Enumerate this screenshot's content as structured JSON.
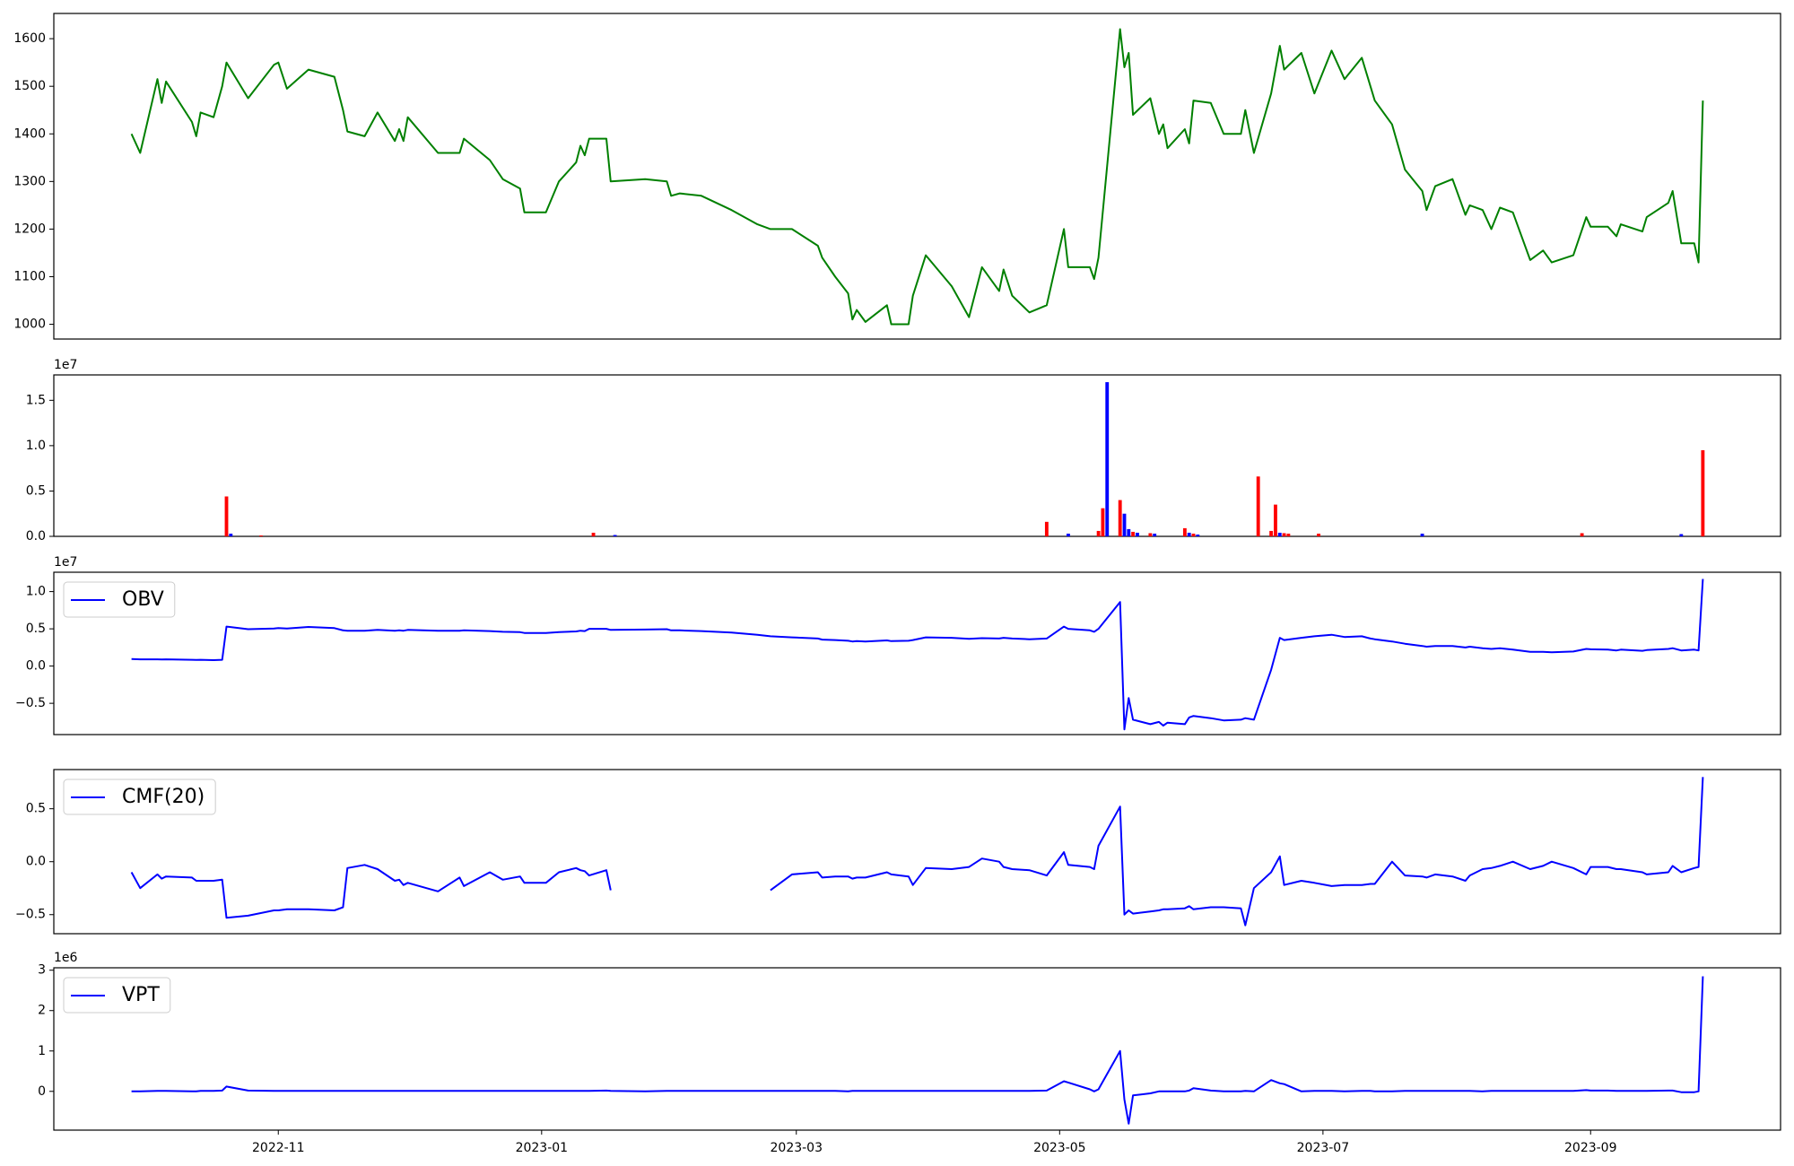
{
  "chart_data": [
    {
      "type": "line",
      "x": [
        "2022-09-28",
        "2022-09-30",
        "2022-10-04",
        "2022-10-05",
        "2022-10-06",
        "2022-10-12",
        "2022-10-13",
        "2022-10-14",
        "2022-10-17",
        "2022-10-19",
        "2022-10-20",
        "2022-10-25",
        "2022-10-31",
        "2022-11-01",
        "2022-11-03",
        "2022-11-08",
        "2022-11-14",
        "2022-11-16",
        "2022-11-17",
        "2022-11-21",
        "2022-11-24",
        "2022-11-28",
        "2022-11-29",
        "2022-11-30",
        "2022-12-01",
        "2022-12-08",
        "2022-12-13",
        "2022-12-14",
        "2022-12-20",
        "2022-12-23",
        "2022-12-27",
        "2022-12-28",
        "2023-01-02",
        "2023-01-05",
        "2023-01-09",
        "2023-01-10",
        "2023-01-11",
        "2023-01-12",
        "2023-01-16",
        "2023-01-17",
        "2023-01-25",
        "2023-01-30",
        "2023-01-31",
        "2023-02-02",
        "2023-02-07",
        "2023-02-14",
        "2023-02-20",
        "2023-02-23",
        "2023-02-28",
        "2023-03-06",
        "2023-03-07",
        "2023-03-10",
        "2023-03-13",
        "2023-03-14",
        "2023-03-15",
        "2023-03-17",
        "2023-03-22",
        "2023-03-23",
        "2023-03-27",
        "2023-03-28",
        "2023-03-31",
        "2023-04-06",
        "2023-04-10",
        "2023-04-13",
        "2023-04-17",
        "2023-04-18",
        "2023-04-20",
        "2023-04-24",
        "2023-04-28",
        "2023-05-02",
        "2023-05-03",
        "2023-05-08",
        "2023-05-09",
        "2023-05-10",
        "2023-05-15",
        "2023-05-16",
        "2023-05-17",
        "2023-05-18",
        "2023-05-22",
        "2023-05-24",
        "2023-05-25",
        "2023-05-26",
        "2023-05-30",
        "2023-05-31",
        "2023-06-01",
        "2023-06-05",
        "2023-06-08",
        "2023-06-12",
        "2023-06-13",
        "2023-06-15",
        "2023-06-19",
        "2023-06-21",
        "2023-06-22",
        "2023-06-26",
        "2023-06-29",
        "2023-07-03",
        "2023-07-06",
        "2023-07-10",
        "2023-07-12",
        "2023-07-13",
        "2023-07-17",
        "2023-07-20",
        "2023-07-24",
        "2023-07-25",
        "2023-07-27",
        "2023-07-31",
        "2023-08-03",
        "2023-08-04",
        "2023-08-07",
        "2023-08-09",
        "2023-08-11",
        "2023-08-14",
        "2023-08-18",
        "2023-08-21",
        "2023-08-23",
        "2023-08-28",
        "2023-08-31",
        "2023-09-01",
        "2023-09-05",
        "2023-09-07",
        "2023-09-08",
        "2023-09-13",
        "2023-09-14",
        "2023-09-19",
        "2023-09-20",
        "2023-09-22",
        "2023-09-25",
        "2023-09-26",
        "2023-09-27"
      ],
      "series": [
        {
          "color": "green",
          "values": [
            1400,
            1360,
            1515,
            1465,
            1510,
            1425,
            1395,
            1445,
            1435,
            1500,
            1550,
            1475,
            1545,
            1550,
            1495,
            1535,
            1520,
            1450,
            1405,
            1395,
            1445,
            1385,
            1410,
            1385,
            1435,
            1360,
            1360,
            1390,
            1345,
            1305,
            1285,
            1235,
            1235,
            1300,
            1340,
            1375,
            1355,
            1390,
            1390,
            1300,
            1305,
            1300,
            1270,
            1275,
            1270,
            1240,
            1210,
            1200,
            1200,
            1165,
            1140,
            1100,
            1065,
            1010,
            1030,
            1005,
            1040,
            1000,
            1000,
            1060,
            1145,
            1080,
            1015,
            1120,
            1070,
            1115,
            1060,
            1025,
            1040,
            1200,
            1120,
            1120,
            1095,
            1140,
            1620,
            1540,
            1570,
            1440,
            1475,
            1400,
            1420,
            1370,
            1410,
            1380,
            1470,
            1465,
            1400,
            1400,
            1450,
            1360,
            1485,
            1585,
            1535,
            1570,
            1485,
            1575,
            1515,
            1560,
            1500,
            1470,
            1420,
            1325,
            1280,
            1240,
            1290,
            1305,
            1230,
            1250,
            1240,
            1200,
            1245,
            1235,
            1135,
            1155,
            1130,
            1145,
            1225,
            1205,
            1205,
            1185,
            1210,
            1195,
            1225,
            1255,
            1280,
            1170,
            1170,
            1130,
            1470
          ]
        }
      ],
      "ylim": [
        969,
        1653
      ],
      "yticks": [
        1000,
        1100,
        1200,
        1300,
        1400,
        1500,
        1600
      ]
    },
    {
      "type": "bar",
      "x": [
        "2022-10-20",
        "2022-10-21",
        "2022-10-28",
        "2023-01-13",
        "2023-01-18",
        "2023-04-28",
        "2023-05-03",
        "2023-05-10",
        "2023-05-11",
        "2023-05-12",
        "2023-05-15",
        "2023-05-16",
        "2023-05-17",
        "2023-05-18",
        "2023-05-19",
        "2023-05-22",
        "2023-05-23",
        "2023-05-30",
        "2023-05-31",
        "2023-06-01",
        "2023-06-02",
        "2023-06-16",
        "2023-06-19",
        "2023-06-20",
        "2023-06-21",
        "2023-06-22",
        "2023-06-23",
        "2023-06-30",
        "2023-07-24",
        "2023-08-30",
        "2023-09-22",
        "2023-09-27"
      ],
      "values": [
        4400000,
        300000,
        100000,
        400000,
        150000,
        1600000,
        300000,
        600000,
        3100000,
        17000000,
        4000000,
        2500000,
        800000,
        500000,
        400000,
        350000,
        300000,
        900000,
        400000,
        300000,
        200000,
        6600000,
        600000,
        3500000,
        400000,
        350000,
        300000,
        300000,
        300000,
        350000,
        250000,
        9500000
      ],
      "colors": [
        "red",
        "blue",
        "red",
        "red",
        "blue",
        "red",
        "blue",
        "red",
        "red",
        "blue",
        "red",
        "blue",
        "blue",
        "red",
        "blue",
        "red",
        "blue",
        "red",
        "blue",
        "red",
        "blue",
        "red",
        "red",
        "red",
        "blue",
        "red",
        "red",
        "red",
        "blue",
        "red",
        "blue",
        "red"
      ],
      "ylim": [
        0,
        17800000
      ],
      "yticks": [
        {
          "value": 0,
          "label": "0.0"
        },
        {
          "value": 5000000,
          "label": "0.5"
        },
        {
          "value": 10000000,
          "label": "1.0"
        },
        {
          "value": 15000000,
          "label": "1.5"
        }
      ],
      "offset_label": "1e7"
    },
    {
      "type": "line",
      "series": [
        {
          "name": "OBV",
          "color": "blue",
          "values": [
            950000,
            900000,
            900000,
            880000,
            900000,
            850000,
            830000,
            850000,
            800000,
            850000,
            5300000,
            4950000,
            5050000,
            5100000,
            5050000,
            5250000,
            5100000,
            4800000,
            4750000,
            4750000,
            4850000,
            4750000,
            4800000,
            4750000,
            4850000,
            4750000,
            4750000,
            4800000,
            4700000,
            4600000,
            4550000,
            4450000,
            4450000,
            4550000,
            4650000,
            4750000,
            4700000,
            5000000,
            5000000,
            4850000,
            4900000,
            4950000,
            4800000,
            4800000,
            4700000,
            4500000,
            4200000,
            4000000,
            3850000,
            3700000,
            3550000,
            3500000,
            3400000,
            3300000,
            3350000,
            3300000,
            3450000,
            3350000,
            3400000,
            3500000,
            3850000,
            3800000,
            3650000,
            3750000,
            3700000,
            3800000,
            3700000,
            3600000,
            3700000,
            5300000,
            5000000,
            4800000,
            4600000,
            5000000,
            8600000,
            -8500000,
            -4300000,
            -7200000,
            -7800000,
            -7500000,
            -8000000,
            -7600000,
            -7800000,
            -6900000,
            -6700000,
            -7000000,
            -7300000,
            -7200000,
            -7000000,
            -7200000,
            -500000,
            3800000,
            3500000,
            3800000,
            4000000,
            4200000,
            3900000,
            4000000,
            3700000,
            3600000,
            3300000,
            3000000,
            2700000,
            2600000,
            2700000,
            2700000,
            2500000,
            2600000,
            2400000,
            2300000,
            2400000,
            2200000,
            1900000,
            1900000,
            1850000,
            1950000,
            2300000,
            2250000,
            2200000,
            2100000,
            2200000,
            2050000,
            2150000,
            2300000,
            2400000,
            2100000,
            2200000,
            2100000,
            11700000
          ]
        }
      ],
      "ylim": [
        -9200000,
        12600000
      ],
      "yticks": [
        {
          "value": -5000000,
          "label": "−0.5"
        },
        {
          "value": 0,
          "label": "0.0"
        },
        {
          "value": 5000000,
          "label": "0.5"
        },
        {
          "value": 10000000,
          "label": "1.0"
        }
      ],
      "offset_label": "1e7",
      "legend": "upper left"
    },
    {
      "type": "line",
      "series": [
        {
          "name": "CMF(20)",
          "color": "blue",
          "values": [
            -0.1,
            -0.25,
            -0.12,
            -0.16,
            -0.14,
            -0.15,
            -0.18,
            -0.18,
            -0.18,
            -0.17,
            -0.53,
            -0.51,
            -0.46,
            -0.46,
            -0.45,
            -0.45,
            -0.46,
            -0.43,
            -0.06,
            -0.03,
            -0.07,
            -0.18,
            -0.17,
            -0.22,
            -0.2,
            -0.28,
            -0.15,
            -0.23,
            -0.1,
            -0.17,
            -0.14,
            -0.2,
            -0.2,
            -0.1,
            -0.06,
            -0.08,
            -0.09,
            -0.13,
            -0.08,
            -0.27,
            null,
            null,
            null,
            null,
            null,
            null,
            null,
            -0.27,
            -0.12,
            -0.1,
            -0.15,
            -0.14,
            -0.14,
            -0.16,
            -0.15,
            -0.15,
            -0.1,
            -0.12,
            -0.14,
            -0.22,
            -0.06,
            -0.07,
            -0.05,
            0.03,
            0,
            -0.05,
            -0.07,
            -0.08,
            -0.13,
            0.09,
            -0.03,
            -0.05,
            -0.07,
            0.15,
            0.52,
            -0.5,
            -0.46,
            -0.49,
            -0.47,
            -0.46,
            -0.45,
            -0.45,
            -0.44,
            -0.42,
            -0.45,
            -0.43,
            -0.43,
            -0.44,
            -0.6,
            -0.25,
            -0.1,
            0.05,
            -0.22,
            -0.18,
            -0.2,
            -0.23,
            -0.22,
            -0.22,
            -0.21,
            -0.21,
            0,
            -0.13,
            -0.14,
            -0.15,
            -0.12,
            -0.14,
            -0.18,
            -0.13,
            -0.07,
            -0.06,
            -0.04,
            0,
            -0.07,
            -0.04,
            0,
            -0.06,
            -0.12,
            -0.05,
            -0.05,
            -0.07,
            -0.07,
            -0.1,
            -0.12,
            -0.1,
            -0.04,
            -0.1,
            -0.06,
            -0.05,
            0.8
          ]
        }
      ],
      "ylim": [
        -0.68,
        0.87
      ],
      "yticks": [
        {
          "value": -0.5,
          "label": "−0.5"
        },
        {
          "value": 0,
          "label": "0.0"
        },
        0.5
      ],
      "legend": "upper left"
    },
    {
      "type": "line",
      "series": [
        {
          "name": "VPT",
          "color": "blue",
          "values": [
            0,
            0,
            10000,
            10000,
            10000,
            0,
            0,
            10000,
            10000,
            20000,
            120000,
            20000,
            10000,
            10000,
            10000,
            10000,
            10000,
            10000,
            10000,
            10000,
            10000,
            10000,
            10000,
            10000,
            10000,
            10000,
            10000,
            10000,
            10000,
            10000,
            10000,
            10000,
            10000,
            10000,
            10000,
            10000,
            10000,
            10000,
            20000,
            10000,
            0,
            10000,
            10000,
            10000,
            10000,
            10000,
            10000,
            10000,
            10000,
            10000,
            10000,
            10000,
            0,
            10000,
            10000,
            10000,
            10000,
            10000,
            10000,
            10000,
            10000,
            10000,
            10000,
            10000,
            10000,
            10000,
            10000,
            10000,
            20000,
            250000,
            220000,
            50000,
            0,
            50000,
            1000000,
            -200000,
            -800000,
            -100000,
            -50000,
            0,
            0,
            0,
            0,
            20000,
            80000,
            20000,
            0,
            0,
            10000,
            0,
            280000,
            200000,
            180000,
            0,
            10000,
            10000,
            0,
            10000,
            10000,
            0,
            0,
            10000,
            10000,
            10000,
            10000,
            10000,
            10000,
            10000,
            0,
            10000,
            10000,
            10000,
            10000,
            10000,
            10000,
            10000,
            30000,
            20000,
            20000,
            10000,
            10000,
            10000,
            10000,
            20000,
            20000,
            -20000,
            -20000,
            0,
            2850000
          ]
        }
      ],
      "ylim": [
        -960000,
        3060000
      ],
      "yticks": [
        {
          "value": 0,
          "label": "0"
        },
        {
          "value": 1000000,
          "label": "1"
        },
        {
          "value": 2000000,
          "label": "2"
        },
        {
          "value": 3000000,
          "label": "3"
        }
      ],
      "offset_label": "1e6",
      "legend": "upper left",
      "xlim": [
        "2022-09-10",
        "2023-10-15"
      ],
      "xticks": [
        {
          "value": "2022-11-01",
          "label": "2022-11"
        },
        {
          "value": "2023-01-01",
          "label": "2023-01"
        },
        {
          "value": "2023-03-01",
          "label": "2023-03"
        },
        {
          "value": "2023-05-01",
          "label": "2023-05"
        },
        {
          "value": "2023-07-01",
          "label": "2023-07"
        },
        {
          "value": "2023-09-01",
          "label": "2023-09"
        }
      ]
    }
  ]
}
